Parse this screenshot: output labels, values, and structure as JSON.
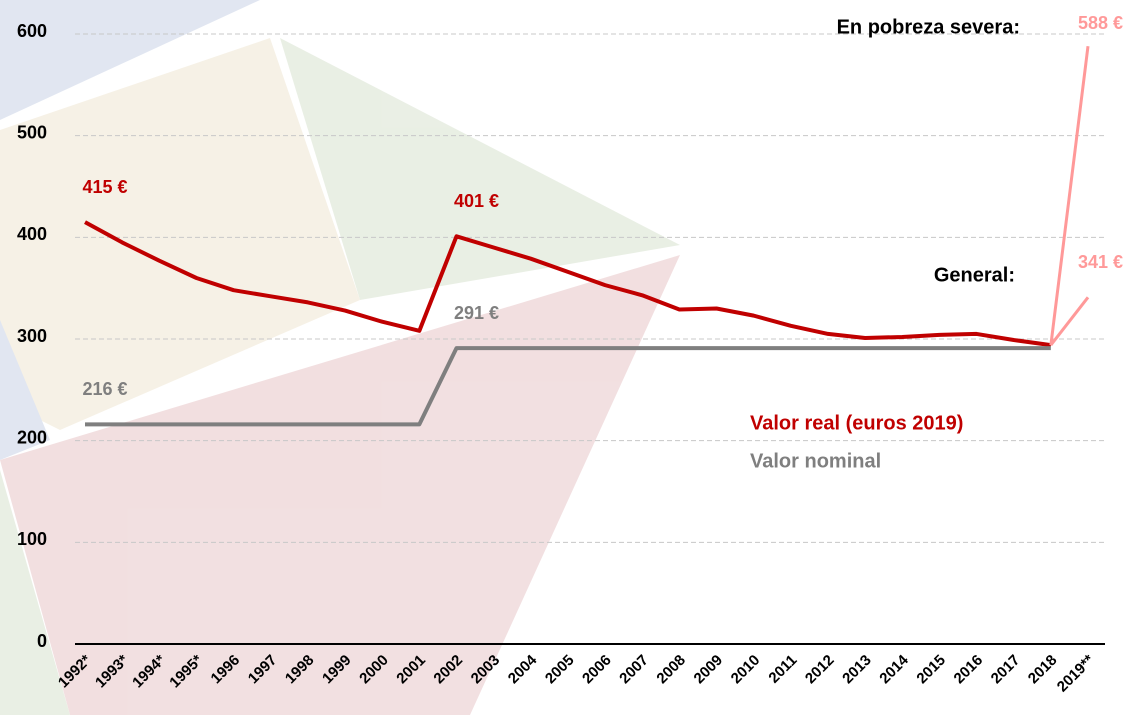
{
  "chart_data": {
    "type": "line",
    "categories": [
      "1992*",
      "1993*",
      "1994*",
      "1995*",
      "1996",
      "1997",
      "1998",
      "1999",
      "2000",
      "2001",
      "2002",
      "2003",
      "2004",
      "2005",
      "2006",
      "2007",
      "2008",
      "2009",
      "2010",
      "2011",
      "2012",
      "2013",
      "2014",
      "2015",
      "2016",
      "2017",
      "2018",
      "2019**"
    ],
    "series": [
      {
        "name": "Valor real (euros 2019)",
        "color": "#c00000",
        "values": [
          415,
          395,
          377,
          360,
          348,
          342,
          336,
          328,
          317,
          308,
          401,
          390,
          379,
          366,
          353,
          343,
          329,
          330,
          323,
          313,
          305,
          301,
          302,
          304,
          305,
          299,
          294,
          null
        ],
        "value_labels": [
          "415 €",
          null,
          null,
          null,
          null,
          null,
          null,
          null,
          null,
          null,
          "401 €",
          null,
          null,
          null,
          null,
          null,
          null,
          null,
          null,
          null,
          null,
          null,
          null,
          null,
          null,
          null,
          null,
          null
        ]
      },
      {
        "name": "Valor nominal",
        "color": "#7f7f7f",
        "values": [
          216,
          216,
          216,
          216,
          216,
          216,
          216,
          216,
          216,
          216,
          291,
          291,
          291,
          291,
          291,
          291,
          291,
          291,
          291,
          291,
          291,
          291,
          291,
          291,
          291,
          291,
          291,
          null
        ],
        "value_labels": [
          "216 €",
          null,
          null,
          null,
          null,
          null,
          null,
          null,
          null,
          null,
          "291 €",
          null,
          null,
          null,
          null,
          null,
          null,
          null,
          null,
          null,
          null,
          null,
          null,
          null,
          null,
          null,
          null,
          null
        ]
      },
      {
        "name": "En pobreza severa:",
        "color": "#ff9999",
        "values": [
          null,
          null,
          null,
          null,
          null,
          null,
          null,
          null,
          null,
          null,
          null,
          null,
          null,
          null,
          null,
          null,
          null,
          null,
          null,
          null,
          null,
          null,
          null,
          null,
          null,
          null,
          294,
          588
        ],
        "value_labels": [
          null,
          null,
          null,
          null,
          null,
          null,
          null,
          null,
          null,
          null,
          null,
          null,
          null,
          null,
          null,
          null,
          null,
          null,
          null,
          null,
          null,
          null,
          null,
          null,
          null,
          null,
          null,
          "588 €"
        ]
      },
      {
        "name": "General:",
        "color": "#ff9999",
        "values": [
          null,
          null,
          null,
          null,
          null,
          null,
          null,
          null,
          null,
          null,
          null,
          null,
          null,
          null,
          null,
          null,
          null,
          null,
          null,
          null,
          null,
          null,
          null,
          null,
          null,
          null,
          294,
          341
        ],
        "value_labels": [
          null,
          null,
          null,
          null,
          null,
          null,
          null,
          null,
          null,
          null,
          null,
          null,
          null,
          null,
          null,
          null,
          null,
          null,
          null,
          null,
          null,
          null,
          null,
          null,
          null,
          null,
          null,
          "341 €"
        ]
      }
    ],
    "ylim": [
      0,
      600
    ],
    "yticks": [
      0,
      100,
      200,
      300,
      400,
      500,
      600
    ],
    "grid": true
  }
}
